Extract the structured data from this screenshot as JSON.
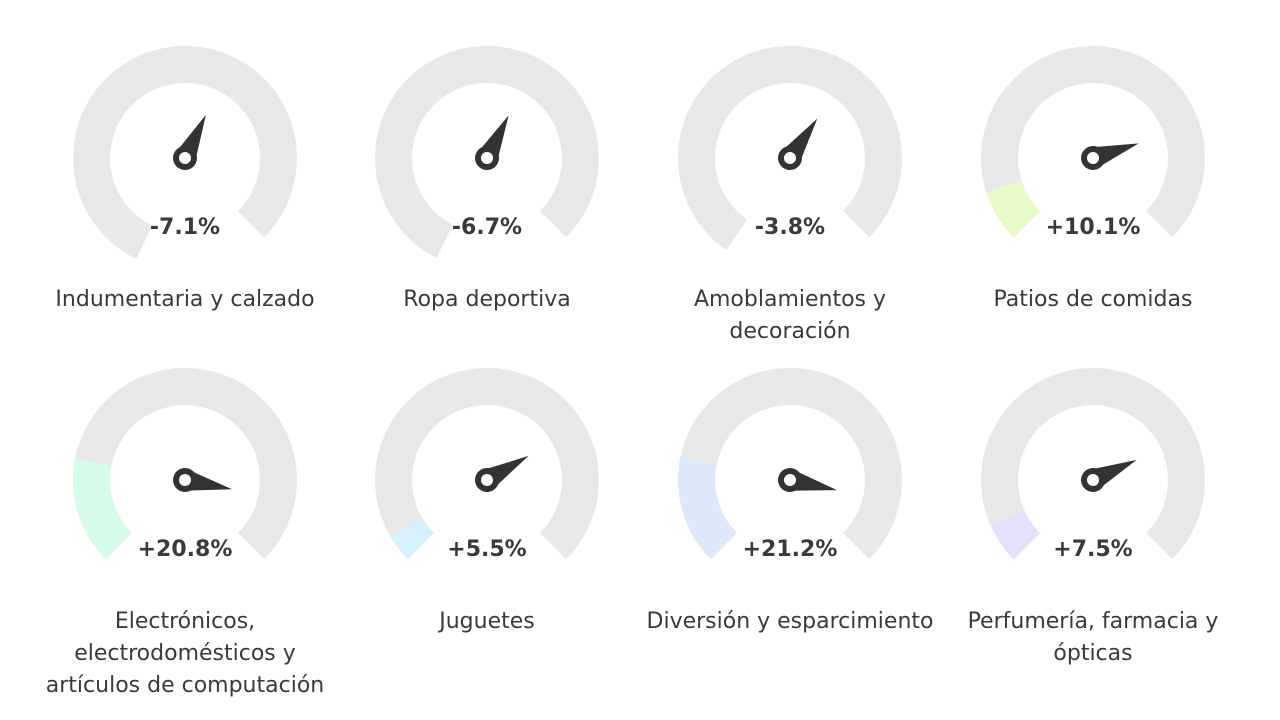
{
  "chart_data": {
    "type": "gauge",
    "ylim": [
      0,
      100
    ],
    "categories": [
      "Indumentaria y calzado",
      "Ropa deportiva",
      "Amoblamientos y decoración",
      "Patios de comidas",
      "Electrónicos, electrodomésticos y artículos de computación",
      "Juguetes",
      "Diversión y esparcimiento",
      "Perfumería, farmacia y ópticas"
    ],
    "values": [
      -7.1,
      -6.7,
      -3.8,
      10.1,
      20.8,
      5.5,
      21.2,
      7.5
    ],
    "value_labels": [
      "-7.1%",
      "-6.7%",
      "-3.8%",
      "+10.1%",
      "+20.8%",
      "+5.5%",
      "+21.2%",
      "+7.5%"
    ],
    "colors": [
      "#e8e8e8",
      "#e8e8e8",
      "#e8e8e8",
      "#e6fbc8",
      "#d6fbe8",
      "#d6f1fb",
      "#dde8fb",
      "#e6e0fb"
    ]
  }
}
